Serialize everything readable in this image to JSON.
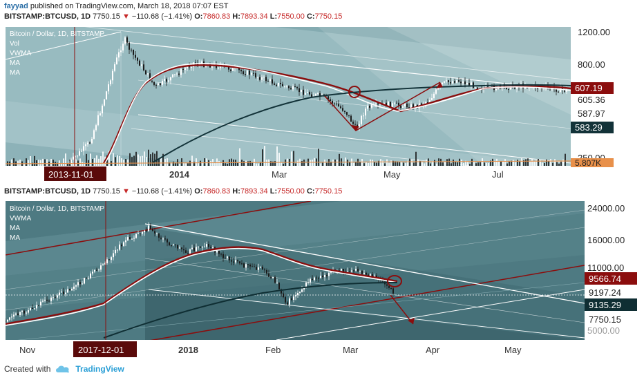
{
  "header": {
    "author": "fayyad",
    "published": "published on TradingView.com, March 18, 2018 07:07 EST"
  },
  "quote": {
    "symbol": "BITSTAMP:BTCUSD, 1D",
    "price": "7750.15",
    "change": "−110.68 (−1.41%)",
    "o_label": "O:",
    "o": "7860.83",
    "h_label": "H:",
    "h": "7893.34",
    "l_label": "L:",
    "l": "7550.00",
    "c_label": "C:",
    "c": "7750.15"
  },
  "top_chart": {
    "legend": [
      "Bitcoin / Dollar, 1D, BITSTAMP",
      "Vol",
      "VWMA",
      "MA",
      "MA"
    ],
    "y_ticks": [
      "1200.00",
      "800.00",
      "250.00"
    ],
    "price_labels": [
      {
        "text": "607.19",
        "style": "red"
      },
      {
        "text": "605.36",
        "style": "plain"
      },
      {
        "text": "587.97",
        "style": "plain"
      },
      {
        "text": "583.29",
        "style": "dark"
      },
      {
        "text": "5.807K",
        "style": "orange"
      }
    ],
    "x_labels": [
      "2014",
      "Mar",
      "May",
      "Jul"
    ],
    "cursor_date": "2013-11-01",
    "colors": {
      "bg": "#8fb3b9",
      "accent_red": "#8b0d0d",
      "dark_ma": "#123238"
    }
  },
  "bottom_chart": {
    "quote_line": "BITSTAMP:BTCUSD, 1D",
    "legend": [
      "Bitcoin / Dollar, 1D, BITSTAMP",
      "VWMA",
      "MA",
      "MA"
    ],
    "y_ticks": [
      "24000.00",
      "16000.00",
      "11000.00",
      "5000.00"
    ],
    "price_labels": [
      {
        "text": "9566.74",
        "style": "red"
      },
      {
        "text": "9197.24",
        "style": "plain"
      },
      {
        "text": "9135.29",
        "style": "dark"
      },
      {
        "text": "7750.15",
        "style": "plain"
      }
    ],
    "x_labels": [
      "Nov",
      "2018",
      "Feb",
      "Mar",
      "Apr",
      "May"
    ],
    "cursor_date": "2017-12-01",
    "colors": {
      "bg": "#4e7a82",
      "accent_red": "#8b0d0d",
      "dark_ma": "#0f2e33"
    }
  },
  "footer": {
    "created_with": "Created with",
    "brand": "TradingView"
  }
}
